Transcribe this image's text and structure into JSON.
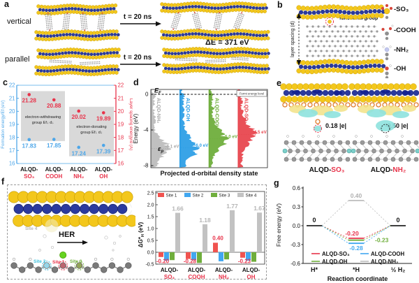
{
  "panels": {
    "a": {
      "label": "a",
      "rows": [
        {
          "name": "vertical",
          "arrow": "t = 20 ns"
        },
        {
          "name": "parallel",
          "arrow": "t = 20 ns"
        }
      ],
      "delta_e": "ΔE = 371 eV"
    },
    "b": {
      "label": "b",
      "layer_spacing": "layer spacing (d)",
      "functional_group": "functional group",
      "groups": [
        "-SO₃",
        "-COOH",
        "-NH₂",
        "-OH"
      ]
    },
    "c": {
      "label": "c"
    },
    "d": {
      "label": "d"
    },
    "e": {
      "label": "e",
      "items": [
        {
          "value": "0.18 |e|",
          "caption_prefix": "ALQD-",
          "caption_suffix": "SO₃"
        },
        {
          "value": "-0.50 |e|",
          "caption_prefix": "ALQD-",
          "caption_suffix": "NH₂"
        }
      ]
    },
    "f": {
      "label": "f",
      "her": "HER",
      "site_labels": [
        "Site 1",
        "Site 2",
        "Site 3",
        "Site 4"
      ]
    },
    "g": {
      "label": "g"
    }
  },
  "chart_data": [
    {
      "panel": "c",
      "type": "scatter",
      "cat_prefix": "ALQD-",
      "cat_suffixes": [
        "SO₃",
        "COOH",
        "NH₂",
        "OH"
      ],
      "categories": [
        "ALQD-SO₃",
        "ALQD-COOH",
        "ALQD-NH₂",
        "ALQD-OH"
      ],
      "series": [
        {
          "name": "Layer spacing energy/d (Å)",
          "axis": "right",
          "color": "#e8334a",
          "values": [
            21.28,
            20.88,
            20.02,
            19.89
          ]
        },
        {
          "name": "Formation energy/Ef (eV)",
          "axis": "left",
          "color": "#4da6e8",
          "values": [
            17.83,
            17.85,
            17.24,
            17.39
          ]
        }
      ],
      "ylim": [
        16,
        22
      ],
      "yticks": [
        22,
        21,
        20,
        19,
        18,
        17,
        16
      ],
      "left_axis_label": "Formation energy/Ef (eV)",
      "right_axis_label": "Layer spacing energy/d (Å)",
      "annotations": [
        {
          "lines": [
            "electron-withdrawing",
            "group   Ef↓   d↓"
          ],
          "cats": [
            0,
            1
          ]
        },
        {
          "lines": [
            "electron-donating",
            "group   Ef↓   d↓"
          ],
          "cats": [
            2,
            3
          ]
        }
      ]
    },
    {
      "panel": "d",
      "type": "dos",
      "xlabel": "Projected d-orbital density state",
      "ylabel": "Energy (eV)",
      "ylim": [
        1,
        -8.2
      ],
      "yticks": [
        0,
        -4,
        -8
      ],
      "fermi_label": "EF",
      "fermi_legend": "Fermi energy level",
      "band_symbol": "εp",
      "series": [
        {
          "name": "ALQD-NH₂",
          "color": "#bdbdbd",
          "text_color": "#a6a6a6",
          "d_band_center": -6.1,
          "label": "-6.1 eV"
        },
        {
          "name": "ALQD-OH",
          "color": "#2e9fe6",
          "text_color": "#2e9fe6",
          "d_band_center": -6.0,
          "label": "-6.0 eV"
        },
        {
          "name": "ALQD-COOH",
          "color": "#6fae3c",
          "text_color": "#6fae3c",
          "d_band_center": -5.0,
          "label": "-5.0 eV"
        },
        {
          "name": "ALQD-SO₃",
          "color": "#e8474f",
          "text_color": "#e8474f",
          "d_band_center": -4.5,
          "label": "-4.5 eV"
        }
      ]
    },
    {
      "panel": "f",
      "type": "bar",
      "ylabel": "ΔG*H (eV)",
      "ylim": [
        -0.5,
        2.5
      ],
      "yticks": [
        2.5,
        2.0,
        1.5,
        1.0,
        0.5,
        0.0,
        -0.5
      ],
      "cat_prefix": "ALQD-",
      "cat_suffixes": [
        "SO₃",
        "COOH",
        "NH₂",
        "OH"
      ],
      "categories": [
        "ALQD-SO₃",
        "ALQD-COOH",
        "ALQD-NH₂",
        "ALQD-OH"
      ],
      "series": [
        {
          "name": "Site 1",
          "color": "#f0534f",
          "values": [
            -0.2,
            -0.28,
            0.4,
            -0.23
          ]
        },
        {
          "name": "Site 2",
          "color": "#41a7f0",
          "values": [
            -0.35,
            -0.33,
            -0.38,
            -0.35
          ]
        },
        {
          "name": "Site 3",
          "color": "#6fae3c",
          "values": [
            -0.33,
            -0.45,
            -0.3,
            -0.4
          ]
        },
        {
          "name": "Site 4",
          "color": "#c2c2c2",
          "values": [
            1.66,
            1.18,
            1.77,
            1.67
          ]
        }
      ],
      "site1_label_values": [
        "-0.20",
        "-0.28",
        "0.40",
        "-0.23"
      ],
      "site4_label_values": [
        "1.66",
        "1.18",
        "1.77",
        "1.67"
      ]
    },
    {
      "panel": "g",
      "type": "line",
      "xlabel": "Reaction coordinate",
      "ylabel": "Free energy (eV)",
      "ylim": [
        -0.6,
        0.6
      ],
      "yticks": [
        0.6,
        0.3,
        0.0,
        -0.3,
        -0.6
      ],
      "x_ticks": [
        "H*",
        "*H",
        "½ H₂"
      ],
      "endpoint_labels": [
        "0",
        "0"
      ],
      "series": [
        {
          "name": "ALQD-NH₂",
          "color": "#bdbdbd",
          "text_color": "#b0b0b0",
          "intermediate": 0.4,
          "label": "0.40",
          "label_pos": "above"
        },
        {
          "name": "ALQD-SO₃",
          "color": "#e8334a",
          "text_color": "#e8334a",
          "intermediate": -0.2,
          "label": "-0.20",
          "label_pos": "above"
        },
        {
          "name": "ALQD-OH",
          "color": "#6fae3c",
          "text_color": "#6fae3c",
          "intermediate": -0.23,
          "label": "-0.23",
          "label_pos": "right"
        },
        {
          "name": "ALQD-COOH",
          "color": "#41a7f0",
          "text_color": "#41a7f0",
          "intermediate": -0.28,
          "label": "-0.28",
          "label_pos": "below"
        }
      ],
      "legend_rows": [
        [
          "ALQD-SO₃",
          "ALQD-COOH"
        ],
        [
          "ALQD-OH",
          "ALQD-NH₂"
        ]
      ]
    }
  ]
}
